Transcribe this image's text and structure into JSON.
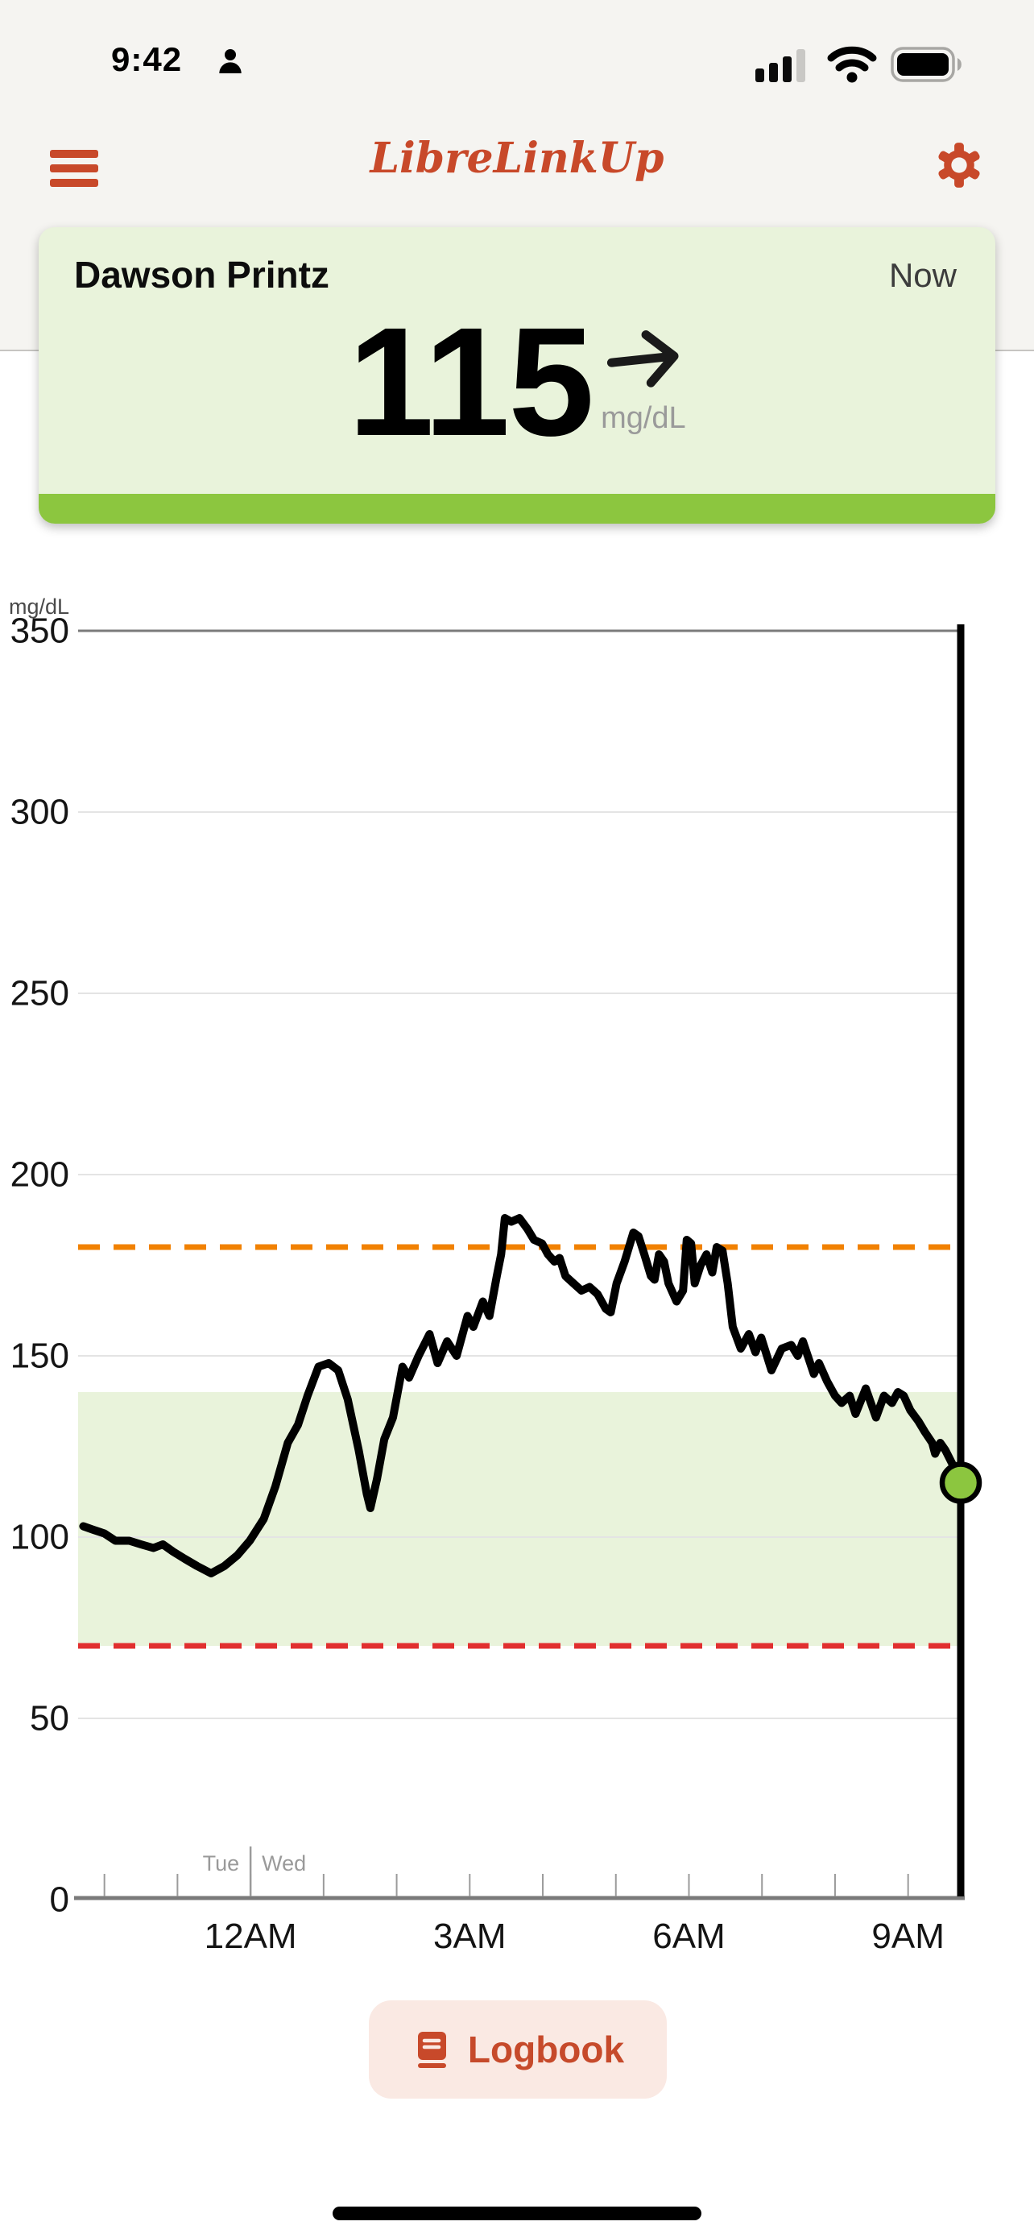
{
  "status_bar": {
    "time": "9:42",
    "icons": [
      "person-icon",
      "cellular-signal-icon",
      "wifi-icon",
      "battery-icon"
    ],
    "cellular_bars_filled": 3,
    "cellular_bars_total": 4
  },
  "header": {
    "title": "LibreLinkUp",
    "menu_icon": "hamburger-icon",
    "settings_icon": "gear-icon"
  },
  "patient_card": {
    "name": "Dawson Printz",
    "timestamp_label": "Now",
    "glucose_value": "115",
    "unit": "mg/dL",
    "trend": "steady-right-arrow"
  },
  "chart_data": {
    "type": "line",
    "title": "",
    "ylabel": "mg/dL",
    "ylim": [
      0,
      350
    ],
    "y_ticks": [
      0,
      50,
      100,
      150,
      200,
      250,
      300,
      350
    ],
    "xlim_hours": [
      -2.36,
      9.72
    ],
    "x_tick_labels": [
      {
        "hour": 0,
        "label": "12AM"
      },
      {
        "hour": 3,
        "label": "3AM"
      },
      {
        "hour": 6,
        "label": "6AM"
      },
      {
        "hour": 9,
        "label": "9AM"
      }
    ],
    "minor_tick_every_hours": 1,
    "grid": true,
    "day_boundary": {
      "hour": 0,
      "left_label": "Tue",
      "right_label": "Wed"
    },
    "target_range": {
      "low": 70,
      "high": 140,
      "band_color": "#E9F3DB"
    },
    "high_threshold": {
      "value": 180,
      "style": "dashed",
      "color": "#F18101"
    },
    "low_threshold": {
      "value": 70,
      "style": "dashed",
      "color": "#E12F2F"
    },
    "now_marker": {
      "hour": 9.72,
      "value": 115,
      "dot_color": "#8CC63F",
      "line_color": "#000000"
    },
    "series": [
      {
        "name": "glucose",
        "unit": "mg/dL",
        "color": "#000000",
        "points": [
          [
            -2.29,
            103
          ],
          [
            -2.15,
            102
          ],
          [
            -2.0,
            101
          ],
          [
            -1.85,
            99
          ],
          [
            -1.66,
            99
          ],
          [
            -1.5,
            98
          ],
          [
            -1.33,
            97
          ],
          [
            -1.2,
            98
          ],
          [
            -1.06,
            96
          ],
          [
            -0.9,
            94
          ],
          [
            -0.73,
            92
          ],
          [
            -0.54,
            90
          ],
          [
            -0.36,
            92
          ],
          [
            -0.18,
            95
          ],
          [
            -0.01,
            99
          ],
          [
            0.18,
            105
          ],
          [
            0.34,
            114
          ],
          [
            0.51,
            126
          ],
          [
            0.65,
            131
          ],
          [
            0.78,
            139
          ],
          [
            0.93,
            147
          ],
          [
            1.07,
            148
          ],
          [
            1.2,
            146
          ],
          [
            1.33,
            138
          ],
          [
            1.48,
            124
          ],
          [
            1.59,
            112
          ],
          [
            1.64,
            108
          ],
          [
            1.73,
            116
          ],
          [
            1.83,
            127
          ],
          [
            1.95,
            133
          ],
          [
            2.08,
            147
          ],
          [
            2.17,
            144
          ],
          [
            2.3,
            150
          ],
          [
            2.45,
            156
          ],
          [
            2.56,
            148
          ],
          [
            2.69,
            154
          ],
          [
            2.82,
            150
          ],
          [
            2.97,
            161
          ],
          [
            3.05,
            158
          ],
          [
            3.18,
            165
          ],
          [
            3.27,
            161
          ],
          [
            3.37,
            172
          ],
          [
            3.43,
            178
          ],
          [
            3.48,
            188
          ],
          [
            3.57,
            187
          ],
          [
            3.68,
            188
          ],
          [
            3.79,
            185
          ],
          [
            3.88,
            182
          ],
          [
            3.99,
            181
          ],
          [
            4.07,
            178
          ],
          [
            4.16,
            176
          ],
          [
            4.23,
            177
          ],
          [
            4.31,
            172
          ],
          [
            4.42,
            170
          ],
          [
            4.53,
            168
          ],
          [
            4.64,
            169
          ],
          [
            4.75,
            167
          ],
          [
            4.86,
            163
          ],
          [
            4.93,
            162
          ],
          [
            5.01,
            170
          ],
          [
            5.12,
            176
          ],
          [
            5.24,
            184
          ],
          [
            5.31,
            183
          ],
          [
            5.39,
            178
          ],
          [
            5.48,
            172
          ],
          [
            5.53,
            171
          ],
          [
            5.59,
            178
          ],
          [
            5.66,
            176
          ],
          [
            5.72,
            170
          ],
          [
            5.83,
            165
          ],
          [
            5.92,
            168
          ],
          [
            5.97,
            182
          ],
          [
            6.03,
            181
          ],
          [
            6.08,
            170
          ],
          [
            6.16,
            175
          ],
          [
            6.24,
            178
          ],
          [
            6.32,
            173
          ],
          [
            6.38,
            180
          ],
          [
            6.46,
            179
          ],
          [
            6.53,
            170
          ],
          [
            6.6,
            158
          ],
          [
            6.71,
            152
          ],
          [
            6.82,
            156
          ],
          [
            6.91,
            151
          ],
          [
            6.99,
            155
          ],
          [
            7.13,
            146
          ],
          [
            7.27,
            152
          ],
          [
            7.4,
            153
          ],
          [
            7.49,
            150
          ],
          [
            7.56,
            154
          ],
          [
            7.71,
            145
          ],
          [
            7.78,
            148
          ],
          [
            7.89,
            143
          ],
          [
            8.0,
            139
          ],
          [
            8.09,
            137
          ],
          [
            8.2,
            139
          ],
          [
            8.28,
            134
          ],
          [
            8.42,
            141
          ],
          [
            8.56,
            133
          ],
          [
            8.67,
            139
          ],
          [
            8.78,
            137
          ],
          [
            8.86,
            140
          ],
          [
            8.94,
            139
          ],
          [
            9.03,
            135
          ],
          [
            9.14,
            132
          ],
          [
            9.23,
            129
          ],
          [
            9.33,
            126
          ],
          [
            9.37,
            123
          ],
          [
            9.44,
            126
          ],
          [
            9.51,
            124
          ],
          [
            9.61,
            120
          ],
          [
            9.72,
            115
          ]
        ]
      }
    ]
  },
  "logbook_button": {
    "label": "Logbook",
    "icon": "book-icon"
  },
  "colors": {
    "brand_orange": "#C8492A",
    "card_green": "#E9F3DB",
    "status_green": "#8CC63F",
    "high_line_orange": "#F18101",
    "low_line_red": "#E12F2F",
    "chrome_gray": "#F5F4F1"
  }
}
